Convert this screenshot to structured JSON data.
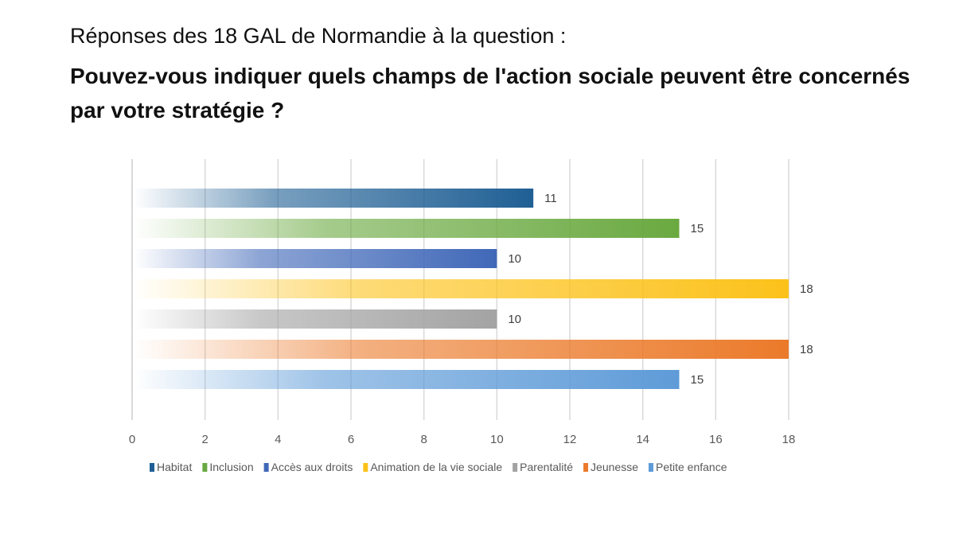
{
  "chart_data": {
    "type": "bar",
    "orientation": "horizontal",
    "title_line1": "Réponses des 18 GAL de Normandie à la question :",
    "title_line2": "Pouvez-vous indiquer quels champs de l'action sociale peuvent être concernés par votre stratégie ?",
    "xlim": [
      0,
      18
    ],
    "xticks": [
      0,
      2,
      4,
      6,
      8,
      10,
      12,
      14,
      16,
      18
    ],
    "grid": true,
    "legend_position": "bottom",
    "series": [
      {
        "name": "Habitat",
        "value": 11,
        "color": "#1f5f94"
      },
      {
        "name": "Inclusion",
        "value": 15,
        "color": "#6aa940"
      },
      {
        "name": "Accès aux droits",
        "value": 10,
        "color": "#4068b8"
      },
      {
        "name": "Animation de la vie sociale",
        "value": 18,
        "color": "#fcc21a"
      },
      {
        "name": "Parentalité",
        "value": 10,
        "color": "#a3a3a3"
      },
      {
        "name": "Jeunesse",
        "value": 18,
        "color": "#eb7a2a"
      },
      {
        "name": "Petite enfance",
        "value": 15,
        "color": "#5e9bd8"
      }
    ]
  }
}
